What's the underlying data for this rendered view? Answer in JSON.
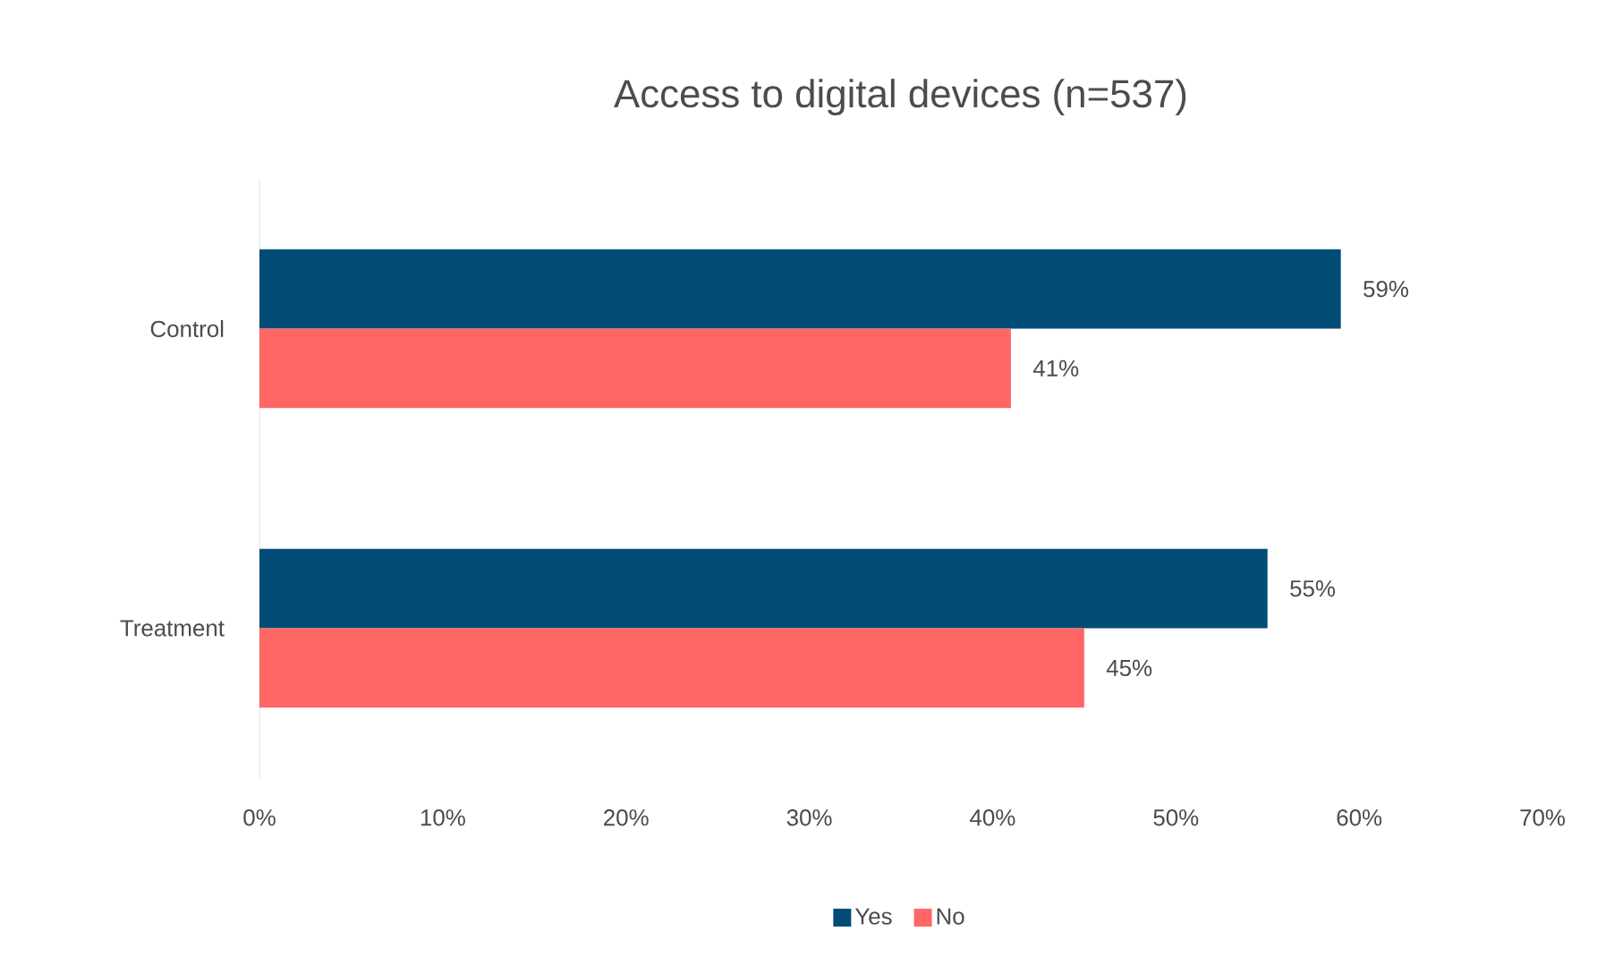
{
  "chart_data": {
    "type": "bar",
    "orientation": "horizontal",
    "title": "Access to digital devices (n=537)",
    "categories": [
      "Control",
      "Treatment"
    ],
    "series": [
      {
        "name": "Yes",
        "color": "#004c75",
        "values": [
          59,
          55
        ],
        "value_labels": [
          "59%",
          "55%"
        ]
      },
      {
        "name": "No",
        "color": "#ff6666",
        "values": [
          41,
          45
        ],
        "value_labels": [
          "41%",
          "45%"
        ]
      }
    ],
    "xlim": [
      0,
      70
    ],
    "xticks": [
      {
        "value": 0,
        "label": "0%"
      },
      {
        "value": 10,
        "label": "10%"
      },
      {
        "value": 20,
        "label": "20%"
      },
      {
        "value": 30,
        "label": "30%"
      },
      {
        "value": 40,
        "label": "40%"
      },
      {
        "value": 50,
        "label": "50%"
      },
      {
        "value": 60,
        "label": "60%"
      },
      {
        "value": 70,
        "label": "70%"
      }
    ],
    "legend": "bottom"
  }
}
